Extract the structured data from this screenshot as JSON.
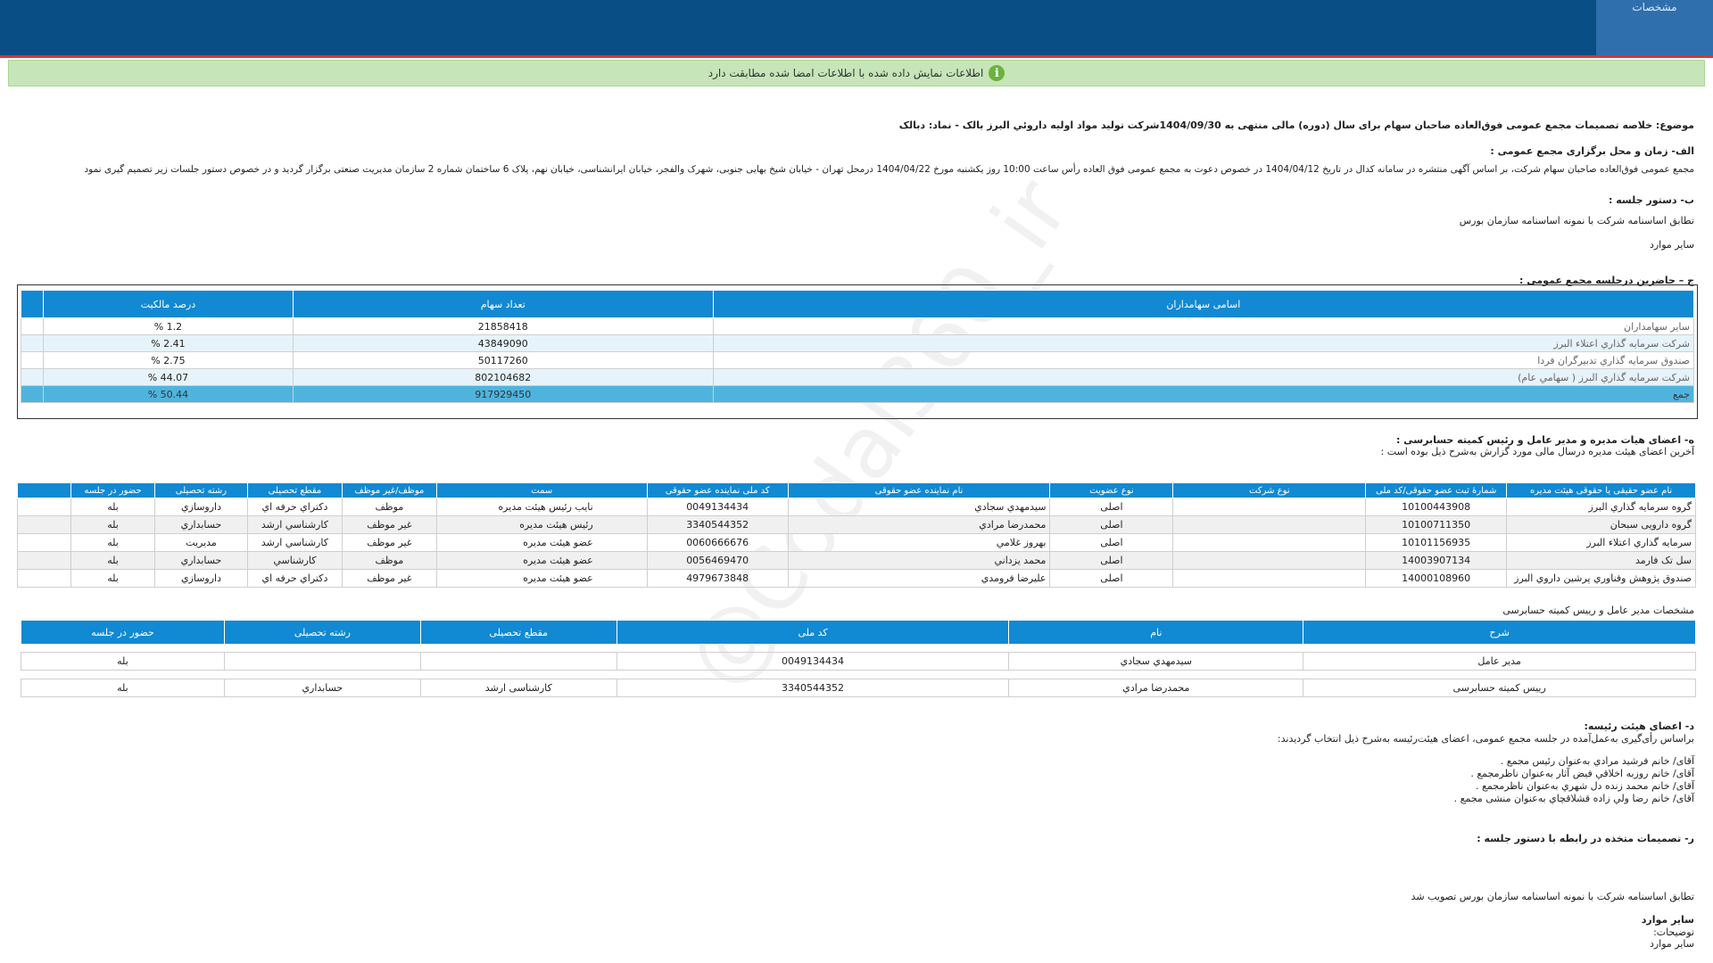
{
  "header": {
    "tab_label": "مشخصات"
  },
  "notice": {
    "text": "اطلاعات نمایش داده شده با اطلاعات امضا شده مطابقت دارد",
    "icon": "info-icon",
    "color": "#6bb33f"
  },
  "subject": "موضوع: خلاصه تصمیمات مجمع عمومی فوق‌العاده صاحبان سهام برای سال (دوره) مالی منتهی به 1404/09/30شرکت تولید مواد اولیه داروئي البرز بالک - نماد: دبالک",
  "section_a": {
    "title": "الف- زمان و محل برگزاری مجمع عمومی :",
    "text": "مجمع عمومی فوق‌العاده صاحبان سهام شرکت، بر اساس آگهی منتشره در سامانه کدال در تاریخ 1404/04/12 در خصوص دعوت به مجمع عمومی فوق العاده رأس ساعت 10:00 روز یکشنبه مورخ 1404/04/22 درمحل تهران - خیابان شیخ بهایی جنوبی، شهرک والفجر، خیابان ایرانشناسی، خیابان نهم، پلاک 6 ساختمان شماره 2 سازمان مدیریت صنعتی   برگزار گردید و در خصوص دستور جلسات زیر تصمیم گیری نمود"
  },
  "section_b": {
    "title": "ب- دستور جلسه :",
    "items": [
      "تطابق اساسنامه شرکت با نمونه اساسنامه سازمان بورس",
      "سایر موارد"
    ]
  },
  "section_c": {
    "title": "ج – حاضرین درجلسه مجمع عمومی :",
    "columns": [
      "اسامی سهامداران",
      "تعداد سهام",
      "درصد مالکیت"
    ],
    "rows": [
      [
        "سایر سهامداران",
        "21858418",
        "1.2 %"
      ],
      [
        "شرکت سرمایه گذاري اعتلاء البرز",
        "43849090",
        "2.41 %"
      ],
      [
        "صندوق سرمایه گذاري تدبیرگران فردا",
        "50117260",
        "2.75 %"
      ],
      [
        "شرکت سرمایه گذاري البرز ( سهامي عام)",
        "802104682",
        "44.07 %"
      ]
    ],
    "total": [
      "جمع",
      "917929450",
      "50.44 %"
    ]
  },
  "section_d": {
    "title": "ه- اعضای هیات مدیره و مدیر عامل و رئیس کمیته حسابرسی :",
    "subtitle": "آخرین اعضای هیئت مدیره درسال مالی مورد گزارش به‌شرح ذیل بوده است :",
    "columns": [
      "نام عضو حقیقی یا حقوقی هیئت مدیره",
      "شمارۀ ثبت عضو حقوقی/کد ملی",
      "نوع شرکت",
      "نوع عضویت",
      "نام نماینده عضو حقوقی",
      "کد ملی نماینده عضو حقوقی",
      "سمت",
      "موظف/غیر موظف",
      "مقطع تحصیلی",
      "رشته تحصیلی",
      "حضور در جلسه"
    ],
    "rows": [
      [
        "گروه سرمایه گذاري البرز",
        "10100443908",
        "",
        "اصلی",
        "سیدمهدي سجادي",
        "0049134434",
        "نایب رئیس هیئت مدیره",
        "موظف",
        "دکتراي حرفه اي",
        "داروسازي",
        "بله"
      ],
      [
        "گروه دارویی سبحان",
        "10100711350",
        "",
        "اصلی",
        "محمدرضا مرادي",
        "3340544352",
        "رئیس هیئت مدیره",
        "غیر موظف",
        "کارشناسي ارشد",
        "حسابداري",
        "بله"
      ],
      [
        "سرمایه گذاري اعتلاء البرز",
        "10101156935",
        "",
        "اصلی",
        "بهروز غلامي",
        "0060666676",
        "عضو هیئت مدیره",
        "غیر موظف",
        "کارشناسي ارشد",
        "مدیریت",
        "بله"
      ],
      [
        "سل تک فارمد",
        "14003907134",
        "",
        "اصلی",
        "محمد یزداني",
        "0056469470",
        "عضو هیئت مدیره",
        "موظف",
        "کارشناسي",
        "حسابداري",
        "بله"
      ],
      [
        "صندوق پژوهش وفناوري پرشین داروي البرز",
        "14000108960",
        "",
        "اصلی",
        "علیرضا فرومدي",
        "4979673848",
        "عضو هیئت مدیره",
        "غیر موظف",
        "دکتراي حرفه اي",
        "داروسازي",
        "بله"
      ]
    ]
  },
  "section_ceo": {
    "title": "مشخصات مدیر عامل و رییس کمیته حسابرسی",
    "columns": [
      "شرح",
      "نام",
      "کد ملی",
      "مقطع تحصیلی",
      "رشته تحصیلی",
      "حضور در جلسه"
    ],
    "rows": [
      [
        "مدیر عامل",
        "سیدمهدي سجادي",
        "0049134434",
        "",
        "",
        "بله"
      ],
      [
        "رییس کمیته حسابرسی",
        "محمدرضا مرادي",
        "3340544352",
        "کارشناسی ارشد",
        "حسابداري",
        "بله"
      ]
    ]
  },
  "section_e": {
    "title": "د- اعضای هیئت رئیسه:",
    "intro": "براساس رأی‌گیری به‌عمل‌آمده در جلسه مجمع عمومی، اعضای هیئت‌رئیسه به‌شرح ذیل انتخاب گردیدند:",
    "items": [
      "آقای/ خانم  فرشید مرادي  به‌عنوان رئیس مجمع .",
      "آقای/ خانم  روزبه اخلاقي فیض آثار  به‌عنوان ناظرمجمع .",
      "آقای/ خانم  محمد زنده دل شهري  به‌عنوان ناظرمجمع .",
      "آقای/ خانم  رضا ولي زاده قشلاقچاي  به‌عنوان منشی مجمع ."
    ]
  },
  "section_f": {
    "title": "ر- تصمیمات متخذه در رابطه با دستور جلسه :",
    "decision": "تطابق اساسنامه شرکت با نمونه اساسنامه سازمان بورس تصویب شد",
    "other_title": "سایر موارد",
    "notes_label": "توضیحات:",
    "other_text": "سایر موارد"
  },
  "watermark": "@Codal360_ir"
}
